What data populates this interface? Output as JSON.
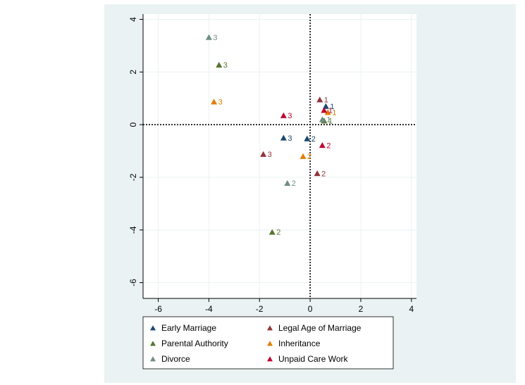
{
  "chart_data": {
    "type": "scatter",
    "title": "",
    "xlabel": "",
    "ylabel": "",
    "xlim": [
      -6.6,
      4.2
    ],
    "ylim": [
      -6.6,
      4.2
    ],
    "x_ticks": [
      -6,
      -4,
      -2,
      0,
      2,
      4
    ],
    "y_ticks": [
      -6,
      -4,
      -2,
      0,
      2,
      4
    ],
    "reference_lines": {
      "x": 0,
      "y": 0,
      "style": "dotted"
    },
    "grid": true,
    "marker": "triangle",
    "legend_position": "bottom",
    "series": [
      {
        "name": "Early Marriage",
        "color": "#1a476f",
        "points": [
          {
            "x": 0.62,
            "y": 0.7,
            "label": "1"
          },
          {
            "x": -0.12,
            "y": -0.53,
            "label": "2"
          },
          {
            "x": -1.05,
            "y": -0.5,
            "label": "3"
          }
        ]
      },
      {
        "name": "Legal Age of Marriage",
        "color": "#90353b",
        "points": [
          {
            "x": 0.38,
            "y": 0.95,
            "label": "1"
          },
          {
            "x": 0.28,
            "y": -1.85,
            "label": "2"
          },
          {
            "x": -1.85,
            "y": -1.12,
            "label": "3"
          }
        ]
      },
      {
        "name": "Parental Authority",
        "color": "#55752f",
        "points": [
          {
            "x": 0.55,
            "y": 0.15,
            "label": "1"
          },
          {
            "x": -1.5,
            "y": -4.08,
            "label": "2"
          },
          {
            "x": -3.6,
            "y": 2.27,
            "label": "3"
          }
        ]
      },
      {
        "name": "Inheritance",
        "color": "#e37e00",
        "points": [
          {
            "x": 0.7,
            "y": 0.47,
            "label": "1"
          },
          {
            "x": -0.28,
            "y": -1.2,
            "label": "2"
          },
          {
            "x": -3.8,
            "y": 0.87,
            "label": "3"
          }
        ]
      },
      {
        "name": "Divorce",
        "color": "#6e8e84",
        "points": [
          {
            "x": 0.48,
            "y": 0.2,
            "label": "1"
          },
          {
            "x": -0.9,
            "y": -2.22,
            "label": "2"
          },
          {
            "x": -4.0,
            "y": 3.32,
            "label": "3"
          }
        ]
      },
      {
        "name": "Unpaid Care Work",
        "color": "#c10534",
        "points": [
          {
            "x": 0.55,
            "y": 0.55,
            "label": "1"
          },
          {
            "x": 0.48,
            "y": -0.78,
            "label": "2"
          },
          {
            "x": -1.05,
            "y": 0.35,
            "label": "3"
          }
        ]
      }
    ]
  }
}
